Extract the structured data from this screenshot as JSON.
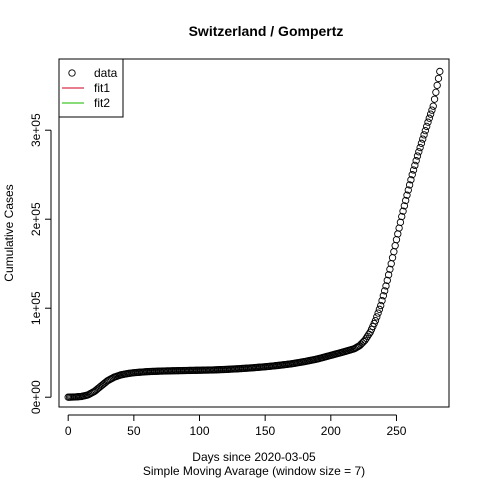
{
  "chart_data": {
    "type": "scatter",
    "title": "Switzerland / Gompertz",
    "xlabel": "Days since 2020-03-05",
    "xsublabel": "Simple Moving Avarage (window size = 7)",
    "ylabel": "Cumulative Cases",
    "xlim": [
      -7,
      290
    ],
    "ylim": [
      -11000,
      380000
    ],
    "x_ticks": [
      0,
      50,
      100,
      150,
      200,
      250
    ],
    "x_tick_labels": [
      "0",
      "50",
      "100",
      "150",
      "200",
      "250"
    ],
    "y_ticks": [
      0,
      100000,
      200000,
      300000
    ],
    "y_tick_labels": [
      "0e+00",
      "1e+05",
      "2e+05",
      "3e+05"
    ],
    "grid": false,
    "legend_position": "top-left",
    "legend": [
      {
        "name": "data",
        "marker": "circle",
        "color": "#000000"
      },
      {
        "name": "fit1",
        "marker": "line",
        "color": "#DF536B"
      },
      {
        "name": "fit2",
        "marker": "line",
        "color": "#61D04F"
      }
    ],
    "series": [
      {
        "name": "data",
        "x_start": 0,
        "x_end": 283,
        "anchors": [
          [
            0,
            0
          ],
          [
            5,
            250
          ],
          [
            10,
            800
          ],
          [
            15,
            2500
          ],
          [
            20,
            6500
          ],
          [
            25,
            12500
          ],
          [
            30,
            18500
          ],
          [
            35,
            22500
          ],
          [
            40,
            25000
          ],
          [
            45,
            26500
          ],
          [
            50,
            27500
          ],
          [
            60,
            28700
          ],
          [
            70,
            29300
          ],
          [
            80,
            29700
          ],
          [
            90,
            30000
          ],
          [
            100,
            30300
          ],
          [
            110,
            30600
          ],
          [
            120,
            31200
          ],
          [
            130,
            32000
          ],
          [
            140,
            33000
          ],
          [
            150,
            34200
          ],
          [
            160,
            35700
          ],
          [
            170,
            37500
          ],
          [
            180,
            40000
          ],
          [
            190,
            43000
          ],
          [
            200,
            47000
          ],
          [
            210,
            51000
          ],
          [
            218,
            54500
          ],
          [
            222,
            58000
          ],
          [
            226,
            64000
          ],
          [
            230,
            73000
          ],
          [
            234,
            86000
          ],
          [
            238,
            103000
          ],
          [
            242,
            125000
          ],
          [
            246,
            150000
          ],
          [
            250,
            177000
          ],
          [
            254,
            203000
          ],
          [
            258,
            227000
          ],
          [
            262,
            250000
          ],
          [
            266,
            271000
          ],
          [
            270,
            290000
          ],
          [
            274,
            309000
          ],
          [
            278,
            327000
          ],
          [
            283,
            366000
          ]
        ]
      },
      {
        "name": "fit1",
        "values": []
      },
      {
        "name": "fit2",
        "values": []
      }
    ]
  }
}
